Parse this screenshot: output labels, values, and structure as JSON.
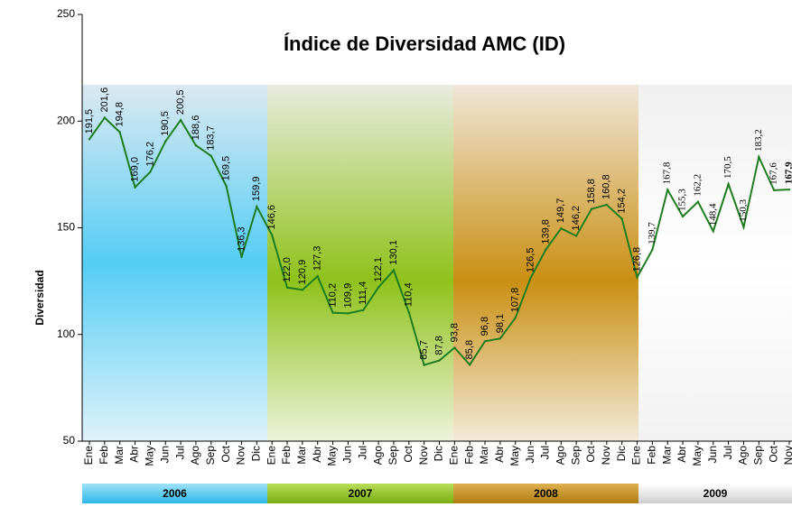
{
  "chart_data": {
    "type": "line",
    "title": "Índice de Diversidad AMC (ID)",
    "y_label": "Diversidad",
    "categories": [
      "Ene",
      "Feb",
      "Mar",
      "Abr",
      "May",
      "Jun",
      "Jul",
      "Ago",
      "Sep",
      "Oct",
      "Nov",
      "Dic",
      "Ene",
      "Feb",
      "Mar",
      "Abr",
      "May",
      "Jun",
      "Jul",
      "Ago",
      "Sep",
      "Oct",
      "Nov",
      "Dic",
      "Ene",
      "Feb",
      "Mar",
      "Abr",
      "May",
      "Jun",
      "Jul",
      "Ago",
      "Sep",
      "Oct",
      "Nov",
      "Dic",
      "Ene",
      "Feb",
      "Mar",
      "Abr",
      "May",
      "Jun",
      "Jul",
      "Ago",
      "Sep",
      "Oct",
      "Nov"
    ],
    "years": [
      "2006",
      "2007",
      "2008",
      "2009"
    ],
    "series": [
      {
        "name": "ID",
        "color": "#1e7d1e",
        "values": [
          191.5,
          201.6,
          194.8,
          169.0,
          176.2,
          190.5,
          200.5,
          188.6,
          183.7,
          169.5,
          136.3,
          159.9,
          146.6,
          122.0,
          120.9,
          127.3,
          110.2,
          109.9,
          111.4,
          122.1,
          130.1,
          110.4,
          85.7,
          87.8,
          93.8,
          85.8,
          96.8,
          98.1,
          107.8,
          126.5,
          139.8,
          149.7,
          146.2,
          158.8,
          160.8,
          154.2,
          126.8,
          139.7,
          167.8,
          155.3,
          162.2,
          148.4,
          170.5,
          150.3,
          183.2,
          167.6,
          167.9
        ],
        "value_labels": [
          "191,5",
          "201,6",
          "194,8",
          "169,0",
          "176,2",
          "190,5",
          "200,5",
          "188,6",
          "183,7",
          "169,5",
          "136,3",
          "159,9",
          "146,6",
          "122,0",
          "120,9",
          "127,3",
          "110,2",
          "109,9",
          "111,4",
          "122,1",
          "130,1",
          "110,4",
          "85,7",
          "87,8",
          "93,8",
          "85,8",
          "96,8",
          "98,1",
          "107,8",
          "126,5",
          "139,8",
          "149,7",
          "146,2",
          "158,8",
          "160,8",
          "154,2",
          "126,8",
          "139,7",
          "167,8",
          "155,3",
          "162,2",
          "148,4",
          "170,5",
          "150,3",
          "183,2",
          "167,6",
          "167,9"
        ]
      }
    ],
    "ylim": [
      50,
      250
    ],
    "yticks": [
      50,
      100,
      150,
      200,
      250
    ]
  }
}
